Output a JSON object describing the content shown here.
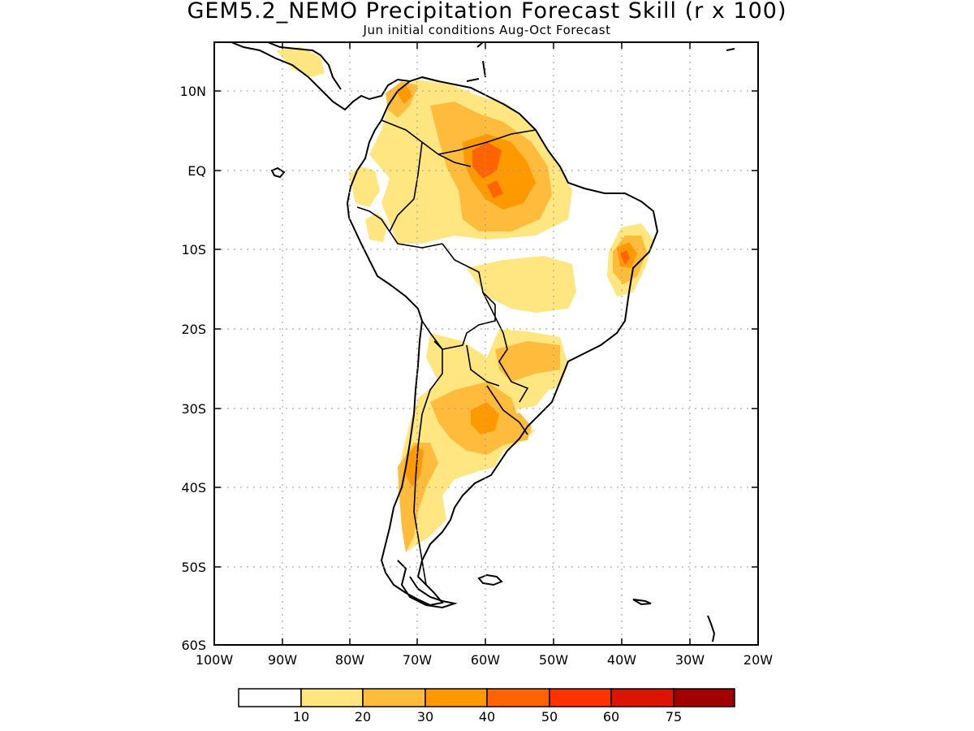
{
  "header": {
    "title": "GEM5.2_NEMO Precipitation Forecast Skill (r x 100)",
    "subtitle": "Jun initial conditions  Aug-Oct Forecast"
  },
  "map": {
    "region": "South America",
    "lon_range": [
      -100,
      -20
    ],
    "lat_range": [
      -60,
      15
    ],
    "gridlines": "dotted",
    "lat_tick_labels": [
      "10N",
      "EQ",
      "10S",
      "20S",
      "30S",
      "40S",
      "50S",
      "60S"
    ],
    "lon_tick_labels": [
      "100W",
      "90W",
      "80W",
      "70W",
      "60W",
      "50W",
      "40W",
      "30W",
      "20W"
    ]
  },
  "colorbar": {
    "colors": [
      "#ffffff",
      "#ffe680",
      "#ffbb3c",
      "#ff9900",
      "#ff6400",
      "#ff3200",
      "#dc1400",
      "#a00000"
    ],
    "labels": [
      "10",
      "20",
      "30",
      "40",
      "50",
      "60",
      "75"
    ]
  }
}
